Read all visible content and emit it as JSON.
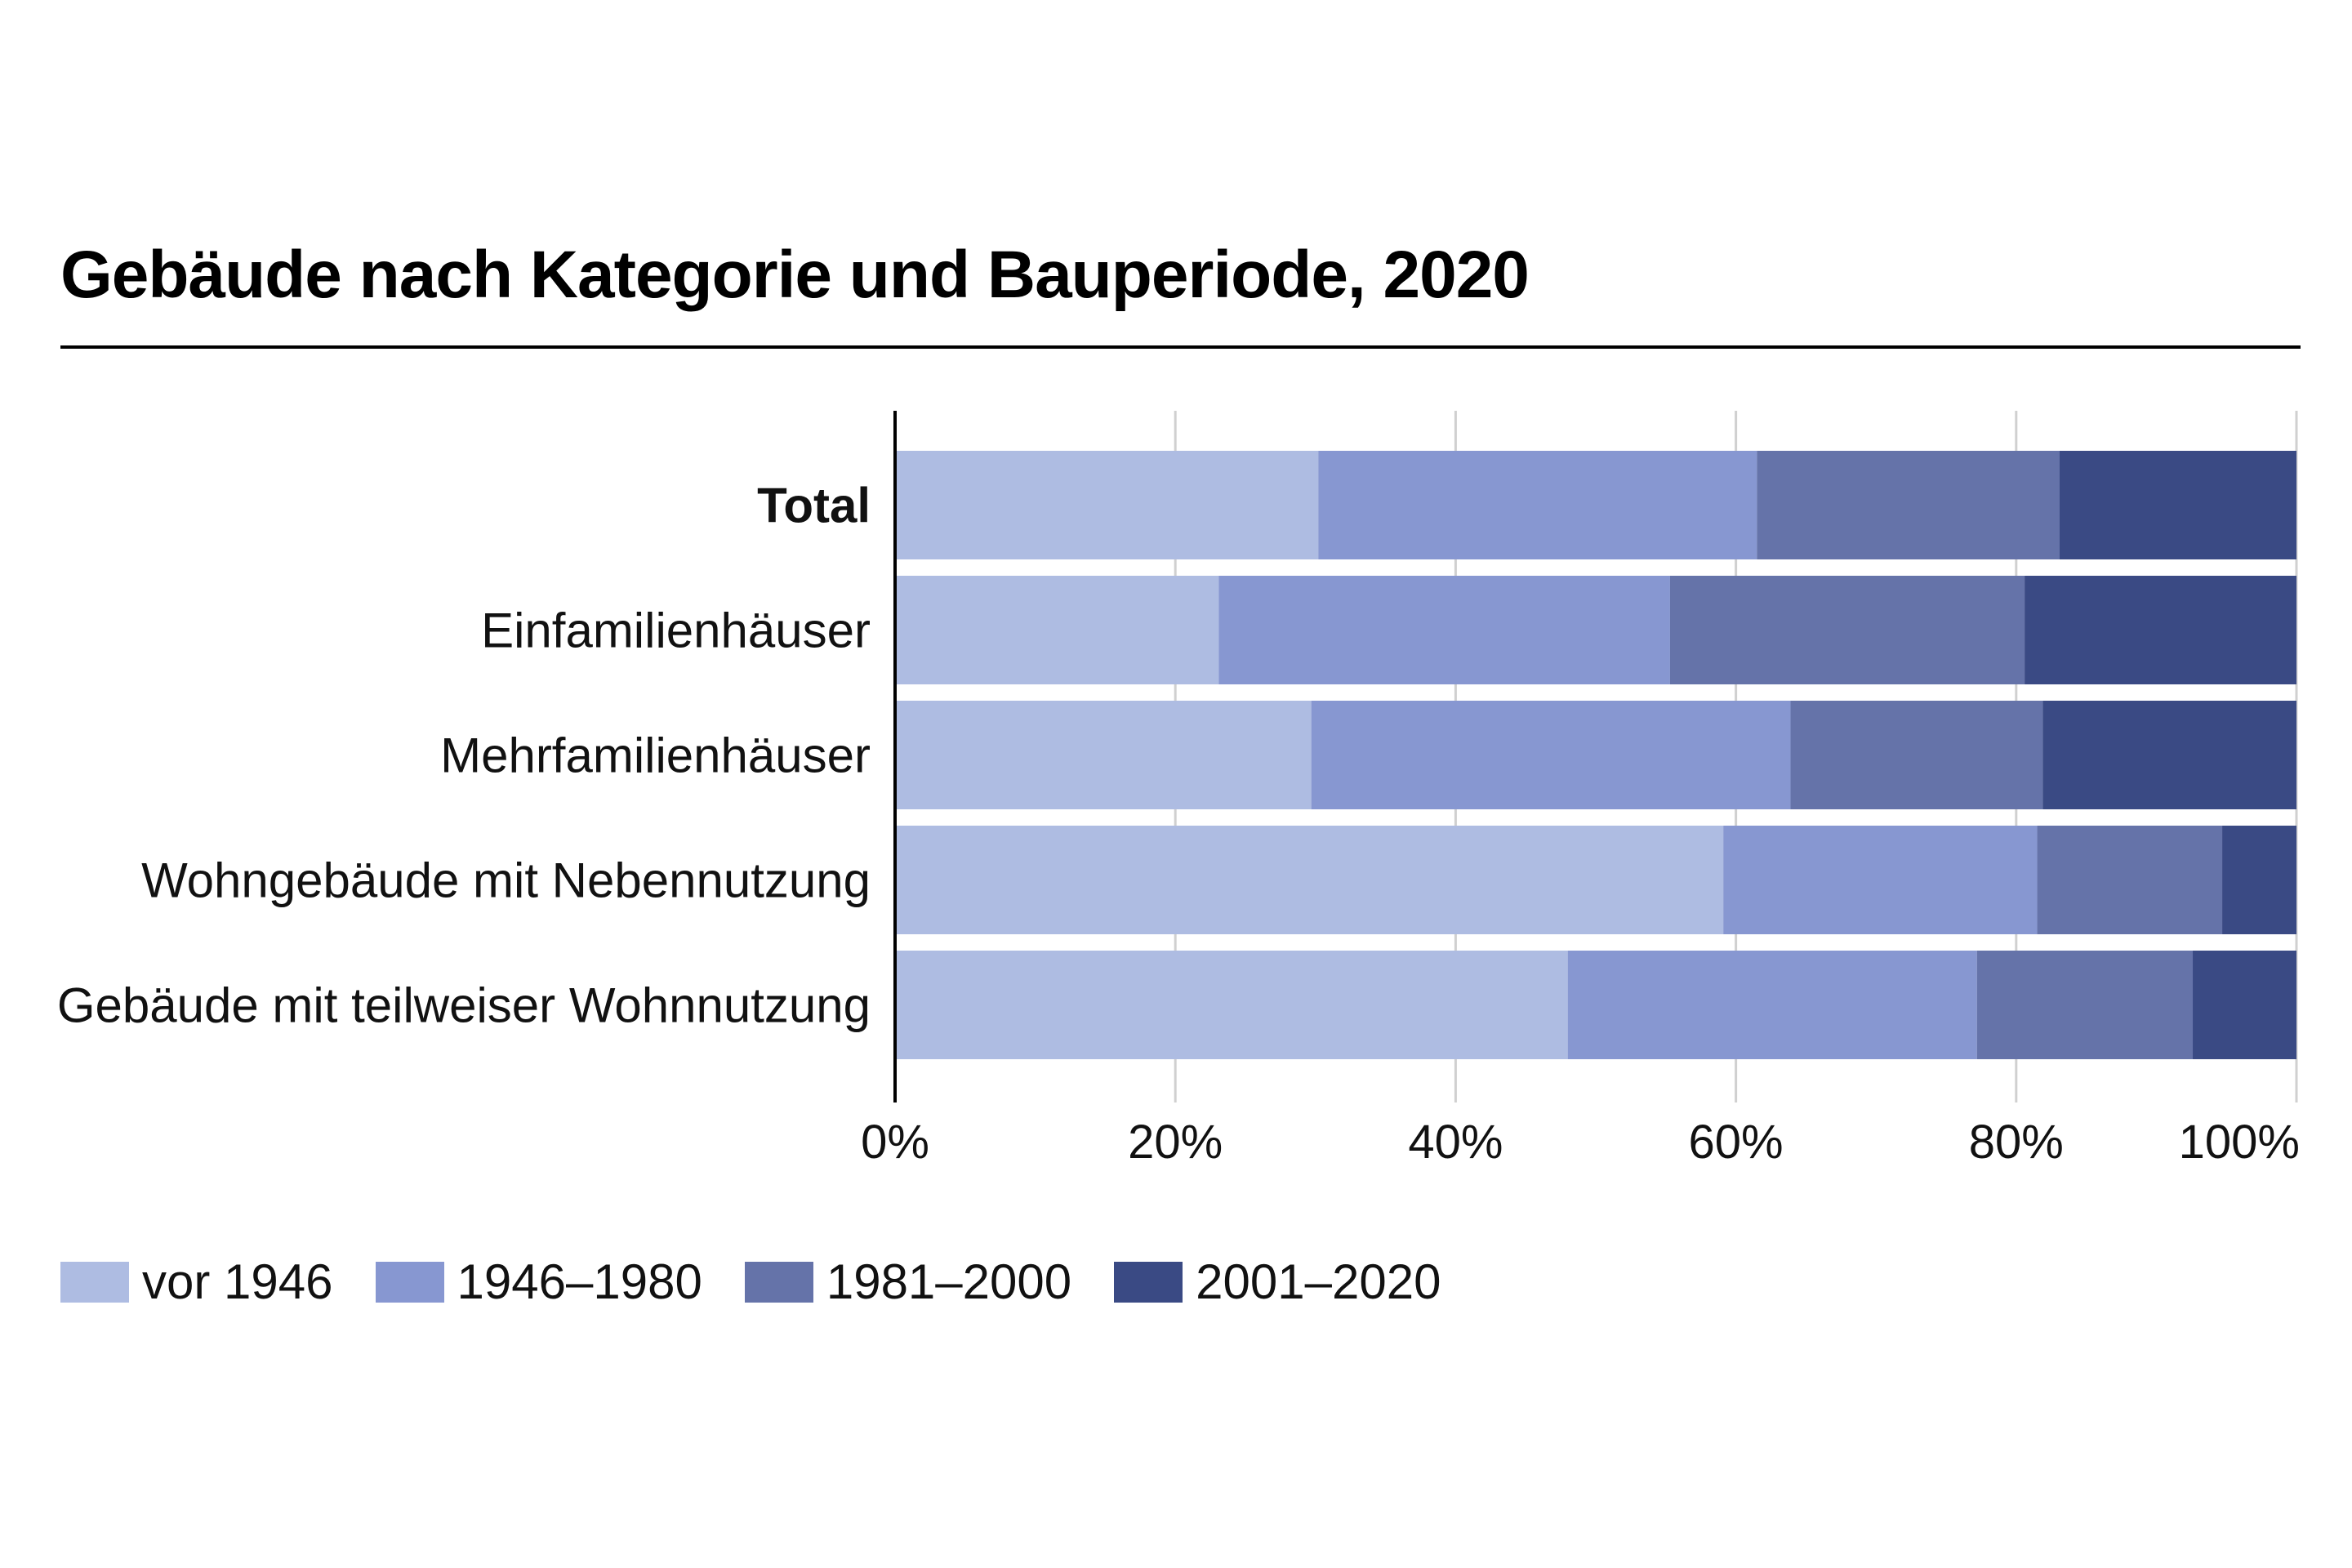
{
  "chart_data": {
    "type": "bar",
    "orientation": "horizontal",
    "stacked": true,
    "title": "Gebäude nach Kategorie und Bauperiode, 2020",
    "xlabel": "",
    "ylabel": "",
    "xlim": [
      0,
      100
    ],
    "x_ticks": [
      "0%",
      "20%",
      "40%",
      "60%",
      "80%",
      "100%"
    ],
    "grid": true,
    "legend_position": "bottom-left",
    "categories": [
      "Total",
      "Einfamilienhäuser",
      "Mehrfamilienhäuser",
      "Wohngebäude mit Nebennutzung",
      "Gebäude mit teilweiser Wohnnutzung"
    ],
    "bold_categories": [
      "Total"
    ],
    "series": [
      {
        "name": "vor 1946",
        "color": "#aebce2",
        "values": [
          30.2,
          23.1,
          29.7,
          59.1,
          48.0
        ]
      },
      {
        "name": "1946–1980",
        "color": "#8797d1",
        "values": [
          31.3,
          32.2,
          34.2,
          22.4,
          29.2
        ]
      },
      {
        "name": "1981–2000",
        "color": "#6573a9",
        "values": [
          21.6,
          25.3,
          18.0,
          13.2,
          15.4
        ]
      },
      {
        "name": "2001–2020",
        "color": "#3a4a84",
        "values": [
          16.9,
          19.4,
          18.1,
          5.3,
          7.4
        ]
      }
    ]
  }
}
